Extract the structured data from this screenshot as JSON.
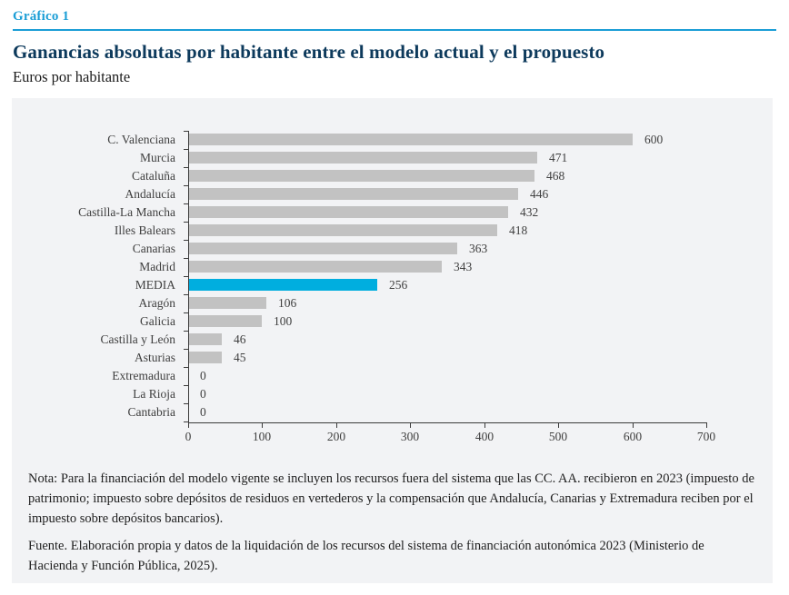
{
  "header": {
    "kicker": "Gráfico 1",
    "title": "Ganancias absolutas por habitante entre el modelo actual y el propuesto",
    "subtitle": "Euros por habitante"
  },
  "colors": {
    "accent": "#1b9ed6",
    "highlight_bar": "#00aedf",
    "bar": "#c2c2c2",
    "panel_background": "#f2f3f5",
    "title_text": "#0d3a5c",
    "axis": "#3b3b3b"
  },
  "chart_data": {
    "type": "bar",
    "orientation": "horizontal",
    "title": "Ganancias absolutas por habitante entre el modelo actual y el propuesto",
    "xlabel": "Euros por habitante",
    "categories": [
      "C. Valenciana",
      "Murcia",
      "Cataluña",
      "Andalucía",
      "Castilla-La Mancha",
      "Illes Balears",
      "Canarias",
      "Madrid",
      "MEDIA",
      "Aragón",
      "Galicia",
      "Castilla y León",
      "Asturias",
      "Extremadura",
      "La Rioja",
      "Cantabria"
    ],
    "values": [
      600,
      471,
      468,
      446,
      432,
      418,
      363,
      343,
      256,
      106,
      100,
      46,
      45,
      0,
      0,
      0
    ],
    "highlight_category": "MEDIA",
    "xlim": [
      0,
      700
    ],
    "xticks": [
      0,
      100,
      200,
      300,
      400,
      500,
      600,
      700
    ],
    "grid": false,
    "legend": false,
    "data_labels": true
  },
  "notes": {
    "nota": "Nota: Para la financiación del modelo vigente se incluyen los recursos fuera del sistema que las CC. AA. recibieron en 2023 (impuesto de patrimonio; impuesto sobre depósitos de residuos en vertederos y la compensación que Andalucía, Canarias y Extremadura reciben por el impuesto sobre depósitos bancarios).",
    "fuente": "Fuente. Elaboración propia y datos de la liquidación de los recursos del sistema de financiación autonómica 2023 (Ministerio de Hacienda y Función Pública, 2025)."
  }
}
